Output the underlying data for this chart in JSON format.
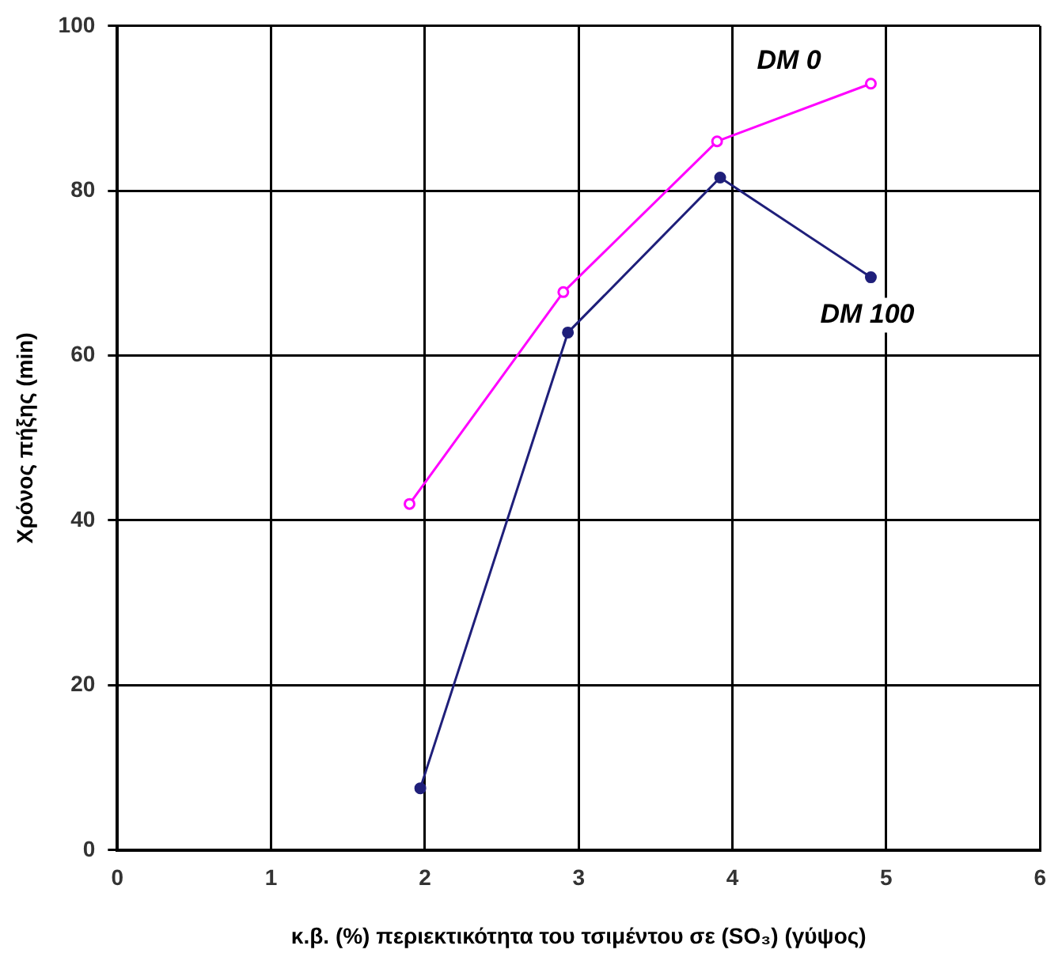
{
  "chart_data": {
    "type": "line",
    "xlabel": "κ.β. (%) περιεκτικότητα του τσιμέντου σε (SO₃) (γύψος)",
    "ylabel": "Χρόνος πήξης (min)",
    "xlim": [
      0,
      6
    ],
    "xticks": [
      0,
      1,
      2,
      3,
      4,
      5,
      6
    ],
    "ylim": [
      0,
      100
    ],
    "yticks": [
      0,
      20,
      40,
      60,
      80,
      100
    ],
    "grid": true,
    "legend": false,
    "marker": "circle",
    "line_style": "solid",
    "series": [
      {
        "name": "DM 0",
        "color": "#ff00ff",
        "x": [
          1.9,
          2.9,
          3.9,
          4.9
        ],
        "values": [
          42,
          67.7,
          86,
          93
        ]
      },
      {
        "name": "DM 100",
        "color": "#1f1f7a",
        "x": [
          1.97,
          2.93,
          3.92,
          4.9
        ],
        "values": [
          7.5,
          62.8,
          81.6,
          69.5
        ]
      }
    ]
  }
}
